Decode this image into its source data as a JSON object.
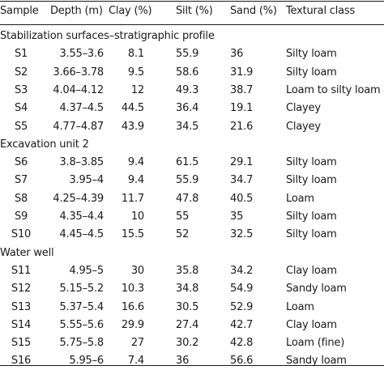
{
  "table": {
    "columns": [
      "Sample",
      "Depth (m)",
      "Clay (%)",
      "Silt (%)",
      "Sand (%)",
      "Textural class"
    ],
    "sections": [
      {
        "title": "Stabilization surfaces–stratigraphic profile",
        "rows": [
          [
            "S1",
            "3.55–3.6",
            "8.1",
            "55.9",
            "36",
            "Silty loam"
          ],
          [
            "S2",
            "3.66–3.78",
            "9.5",
            "58.6",
            "31.9",
            "Silty loam"
          ],
          [
            "S3",
            "4.04–4.12",
            "12",
            "49.3",
            "38.7",
            "Loam to silty loam"
          ],
          [
            "S4",
            "4.37–4.5",
            "44.5",
            "36.4",
            "19.1",
            "Clayey"
          ],
          [
            "S5",
            "4.77–4.87",
            "43.9",
            "34.5",
            "21.6",
            "Clayey"
          ]
        ]
      },
      {
        "title": "Excavation unit 2",
        "rows": [
          [
            "S6",
            "3.8–3.85",
            "9.4",
            "61.5",
            "29.1",
            "Silty loam"
          ],
          [
            "S7",
            "3.95–4",
            "9.4",
            "55.9",
            "34.7",
            "Silty loam"
          ],
          [
            "S8",
            "4.25–4.39",
            "11.7",
            "47.8",
            "40.5",
            "Loam"
          ],
          [
            "S9",
            "4.35–4.4",
            "10",
            "55",
            "35",
            "Silty loam"
          ],
          [
            "S10",
            "4.45–4.5",
            "15.5",
            "52",
            "32.5",
            "Silty loam"
          ]
        ]
      },
      {
        "title": "Water well",
        "rows": [
          [
            "S11",
            "4.95–5",
            "30",
            "35.8",
            "34.2",
            "Clay loam"
          ],
          [
            "S12",
            "5.15–5.2",
            "10.3",
            "34.8",
            "54.9",
            "Sandy loam"
          ],
          [
            "S13",
            "5.37–5.4",
            "16.6",
            "30.5",
            "52.9",
            "Loam"
          ],
          [
            "S14",
            "5.55–5.6",
            "29.9",
            "27.4",
            "42.7",
            "Clay loam"
          ],
          [
            "S15",
            "5.75–5.8",
            "27",
            "30.2",
            "42.8",
            "Loam (fine)"
          ],
          [
            "S16",
            "5.95–6",
            "7.4",
            "36",
            "56.6",
            "Sandy loam"
          ]
        ]
      }
    ]
  }
}
